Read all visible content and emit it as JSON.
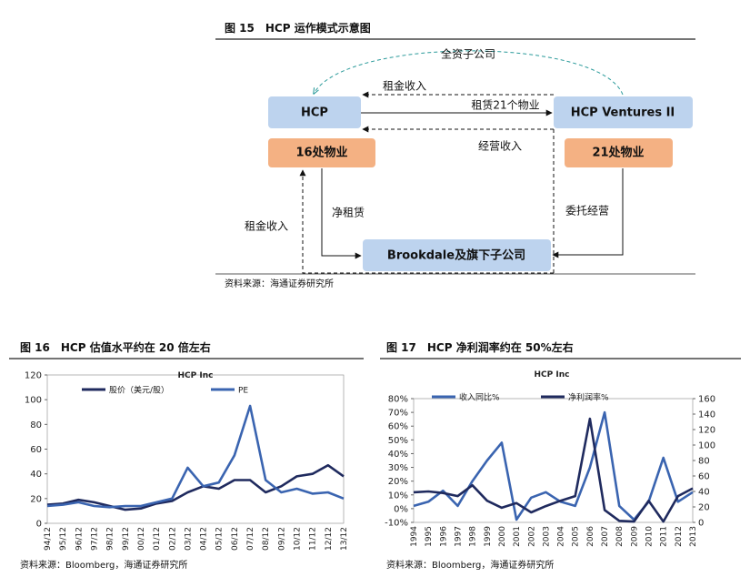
{
  "diagram": {
    "title": "图 15　HCP 运作模式示意图",
    "nodes": [
      "HCP",
      "HCP Ventures II",
      "16处物业",
      "21处物业",
      "Brookdale及旗下子公司"
    ],
    "edge_labels": [
      "全资子公司",
      "租金收入",
      "租赁21个物业",
      "经营收入",
      "租金收入",
      "净租赁",
      "委托经营"
    ],
    "source": "资料来源：海通证券研究所"
  },
  "figures": [
    {
      "title": "图 16　HCP 估值水平约在 20 倍左右",
      "source": "资料来源：Bloomberg，海通证券研究所"
    },
    {
      "title": "图 17　HCP 净利润率约在 50%左右",
      "source": "资料来源：Bloomberg，海通证券研究所"
    }
  ],
  "chart_data": [
    {
      "type": "line",
      "title": "HCP Inc",
      "categories": [
        "94/12",
        "95/12",
        "96/12",
        "97/12",
        "98/12",
        "99/12",
        "00/12",
        "01/12",
        "02/12",
        "03/12",
        "04/12",
        "05/12",
        "06/12",
        "07/12",
        "08/12",
        "09/12",
        "10/12",
        "11/12",
        "12/12",
        "13/12"
      ],
      "series": [
        {
          "name": "股价（美元/股）",
          "color": "#1f2a5e",
          "values": [
            15,
            16,
            19,
            17,
            14,
            11,
            12,
            16,
            18,
            25,
            30,
            28,
            35,
            35,
            25,
            30,
            38,
            40,
            47,
            38
          ]
        },
        {
          "name": "PE",
          "color": "#3a64b0",
          "values": [
            14,
            15,
            17,
            14,
            13,
            14,
            14,
            17,
            20,
            45,
            30,
            33,
            55,
            95,
            35,
            25,
            28,
            24,
            25,
            20
          ]
        }
      ],
      "ylim": [
        0,
        120
      ],
      "yticks": [
        0,
        20,
        40,
        60,
        80,
        100,
        120
      ]
    },
    {
      "type": "line",
      "title": "HCP Inc",
      "categories": [
        "1994",
        "1995",
        "1996",
        "1997",
        "1998",
        "1999",
        "2000",
        "2001",
        "2002",
        "2003",
        "2004",
        "2005",
        "2006",
        "2007",
        "2008",
        "2009",
        "2010",
        "2011",
        "2012",
        "2013"
      ],
      "series": [
        {
          "name": "收入同比%",
          "color": "#3a64b0",
          "values": [
            2,
            5,
            13,
            2,
            20,
            35,
            48,
            -8,
            8,
            12,
            5,
            2,
            30,
            70,
            2,
            -8,
            5,
            37,
            5,
            12
          ]
        },
        {
          "name": "净利润率%",
          "color": "#1f2a5e",
          "axis": "y2",
          "values": [
            39,
            40,
            38,
            34,
            48,
            28,
            19,
            25,
            13,
            21,
            28,
            34,
            134,
            16,
            2,
            1,
            28,
            1,
            34,
            44
          ]
        }
      ],
      "ylim": [
        -10,
        80
      ],
      "yticks": [
        {
          "value": -10,
          "label": "-10%"
        },
        {
          "value": 0,
          "label": "0%"
        },
        {
          "value": 10,
          "label": "10%"
        },
        {
          "value": 20,
          "label": "20%"
        },
        {
          "value": 30,
          "label": "30%"
        },
        {
          "value": 40,
          "label": "40%"
        },
        {
          "value": 50,
          "label": "50%"
        },
        {
          "value": 60,
          "label": "60%"
        },
        {
          "value": 70,
          "label": "70%"
        },
        {
          "value": 80,
          "label": "80%"
        }
      ],
      "y2lim": [
        0,
        160
      ],
      "y2ticks": [
        0,
        20,
        40,
        60,
        80,
        100,
        120,
        140,
        160
      ]
    }
  ]
}
